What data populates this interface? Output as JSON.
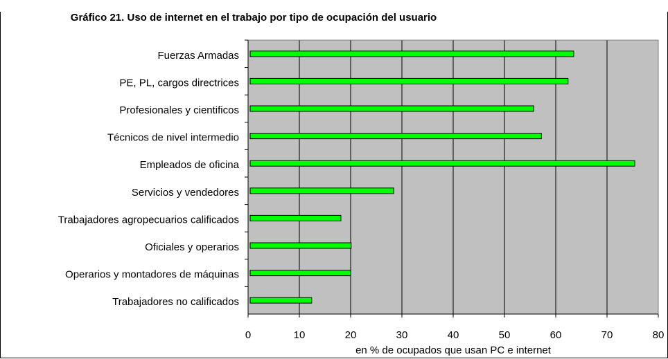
{
  "chart_data": {
    "type": "hbar",
    "title": "Gráfico 21. Uso de internet en el trabajo por tipo de ocupación del usuario",
    "categories": [
      "Fuerzas Armadas",
      "PE, PL, cargos directrices",
      "Profesionales y cientificos",
      "Técnicos de nivel intermedio",
      "Empleados de oficina",
      "Servicios y vendedores",
      "Trabajadores agropecuarios calificados",
      "Oficiales y operarios",
      "Operarios y montadores de máquinas",
      "Trabajadores no calificados"
    ],
    "values": [
      63.5,
      62.4,
      55.7,
      57.2,
      75.4,
      28.4,
      18.1,
      20.1,
      20,
      12.4
    ],
    "color": "#00ff00",
    "xlabel": "en % de ocupados que usan PC e internet",
    "xlim": [
      0,
      80
    ],
    "xticks": [
      0,
      10,
      20,
      30,
      40,
      50,
      60,
      70,
      80
    ],
    "grid": true
  }
}
